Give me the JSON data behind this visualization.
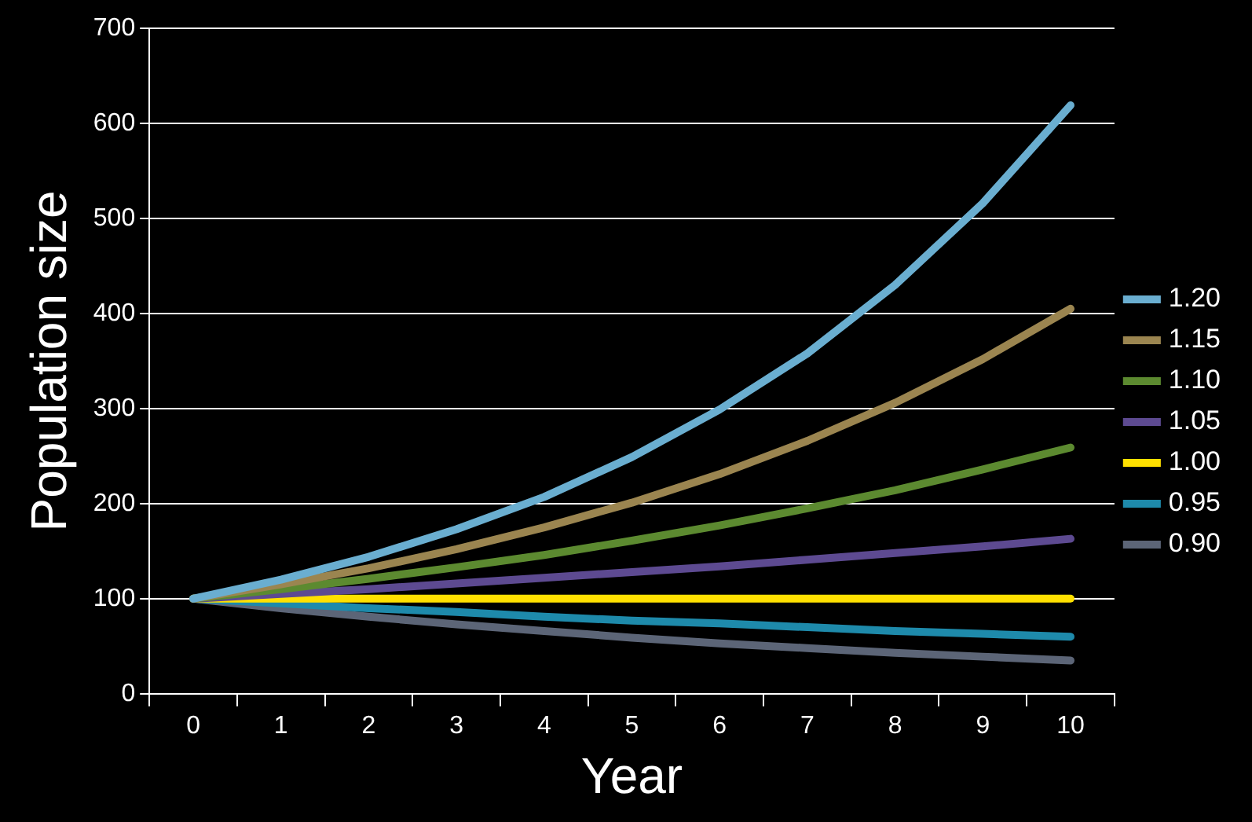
{
  "chart_data": {
    "type": "line",
    "xlabel": "Year",
    "ylabel": "Population size",
    "categories": [
      "0",
      "1",
      "2",
      "3",
      "4",
      "5",
      "6",
      "7",
      "8",
      "9",
      "10"
    ],
    "ylim": [
      0,
      700
    ],
    "yticks": [
      0,
      100,
      200,
      300,
      400,
      500,
      600,
      700
    ],
    "grid": "y",
    "legend": "right",
    "marker": "none",
    "line_style": "solid",
    "series": [
      {
        "name": "1.20",
        "color": "#6aaed0",
        "values": [
          100,
          120,
          144,
          173,
          207,
          249,
          299,
          358,
          430,
          516,
          619
        ]
      },
      {
        "name": "1.15",
        "color": "#9b8550",
        "values": [
          100,
          115,
          132,
          152,
          175,
          201,
          231,
          266,
          306,
          352,
          405
        ]
      },
      {
        "name": "1.10",
        "color": "#5c8a30",
        "values": [
          100,
          110,
          121,
          133,
          146,
          161,
          177,
          195,
          214,
          236,
          259
        ]
      },
      {
        "name": "1.05",
        "color": "#5d4a91",
        "values": [
          100,
          105,
          110,
          116,
          122,
          128,
          134,
          141,
          148,
          155,
          163
        ]
      },
      {
        "name": "1.00",
        "color": "#ffe000",
        "values": [
          100,
          100,
          100,
          100,
          100,
          100,
          100,
          100,
          100,
          100,
          100
        ]
      },
      {
        "name": "0.95",
        "color": "#1e8aab",
        "values": [
          100,
          95,
          90,
          86,
          81,
          77,
          74,
          70,
          66,
          63,
          60
        ]
      },
      {
        "name": "0.90",
        "color": "#5c6577",
        "values": [
          100,
          90,
          81,
          73,
          66,
          59,
          53,
          48,
          43,
          39,
          35
        ]
      }
    ]
  }
}
